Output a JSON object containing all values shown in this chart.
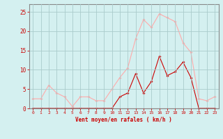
{
  "hours": [
    0,
    1,
    2,
    3,
    4,
    5,
    6,
    7,
    8,
    9,
    10,
    11,
    12,
    13,
    14,
    15,
    16,
    17,
    18,
    19,
    20,
    21,
    22,
    23
  ],
  "rafales": [
    2.5,
    2.5,
    6,
    4,
    3,
    0.5,
    3,
    3,
    2,
    2,
    5,
    8,
    10.5,
    18,
    23,
    21,
    24.5,
    23.5,
    22.5,
    17,
    14.5,
    2.5,
    2,
    3
  ],
  "vent_moyen": [
    0,
    0,
    0,
    0,
    0,
    0,
    0,
    0,
    0,
    0,
    0,
    3,
    4,
    9,
    4,
    7,
    13.5,
    8.5,
    9.5,
    12,
    8,
    0,
    0,
    0
  ],
  "rafales_color": "#ffaaaa",
  "vent_moyen_color": "#cc0000",
  "bg_color": "#d4f0f0",
  "grid_color": "#aacccc",
  "xlabel": "Vent moyen/en rafales ( km/h )",
  "ylabel_vals": [
    0,
    5,
    10,
    15,
    20,
    25
  ],
  "ylim": [
    0,
    27
  ],
  "xlim": [
    -0.5,
    23.5
  ],
  "xlabel_color": "#cc0000",
  "tick_color": "#cc0000",
  "axis_color": "#888888"
}
